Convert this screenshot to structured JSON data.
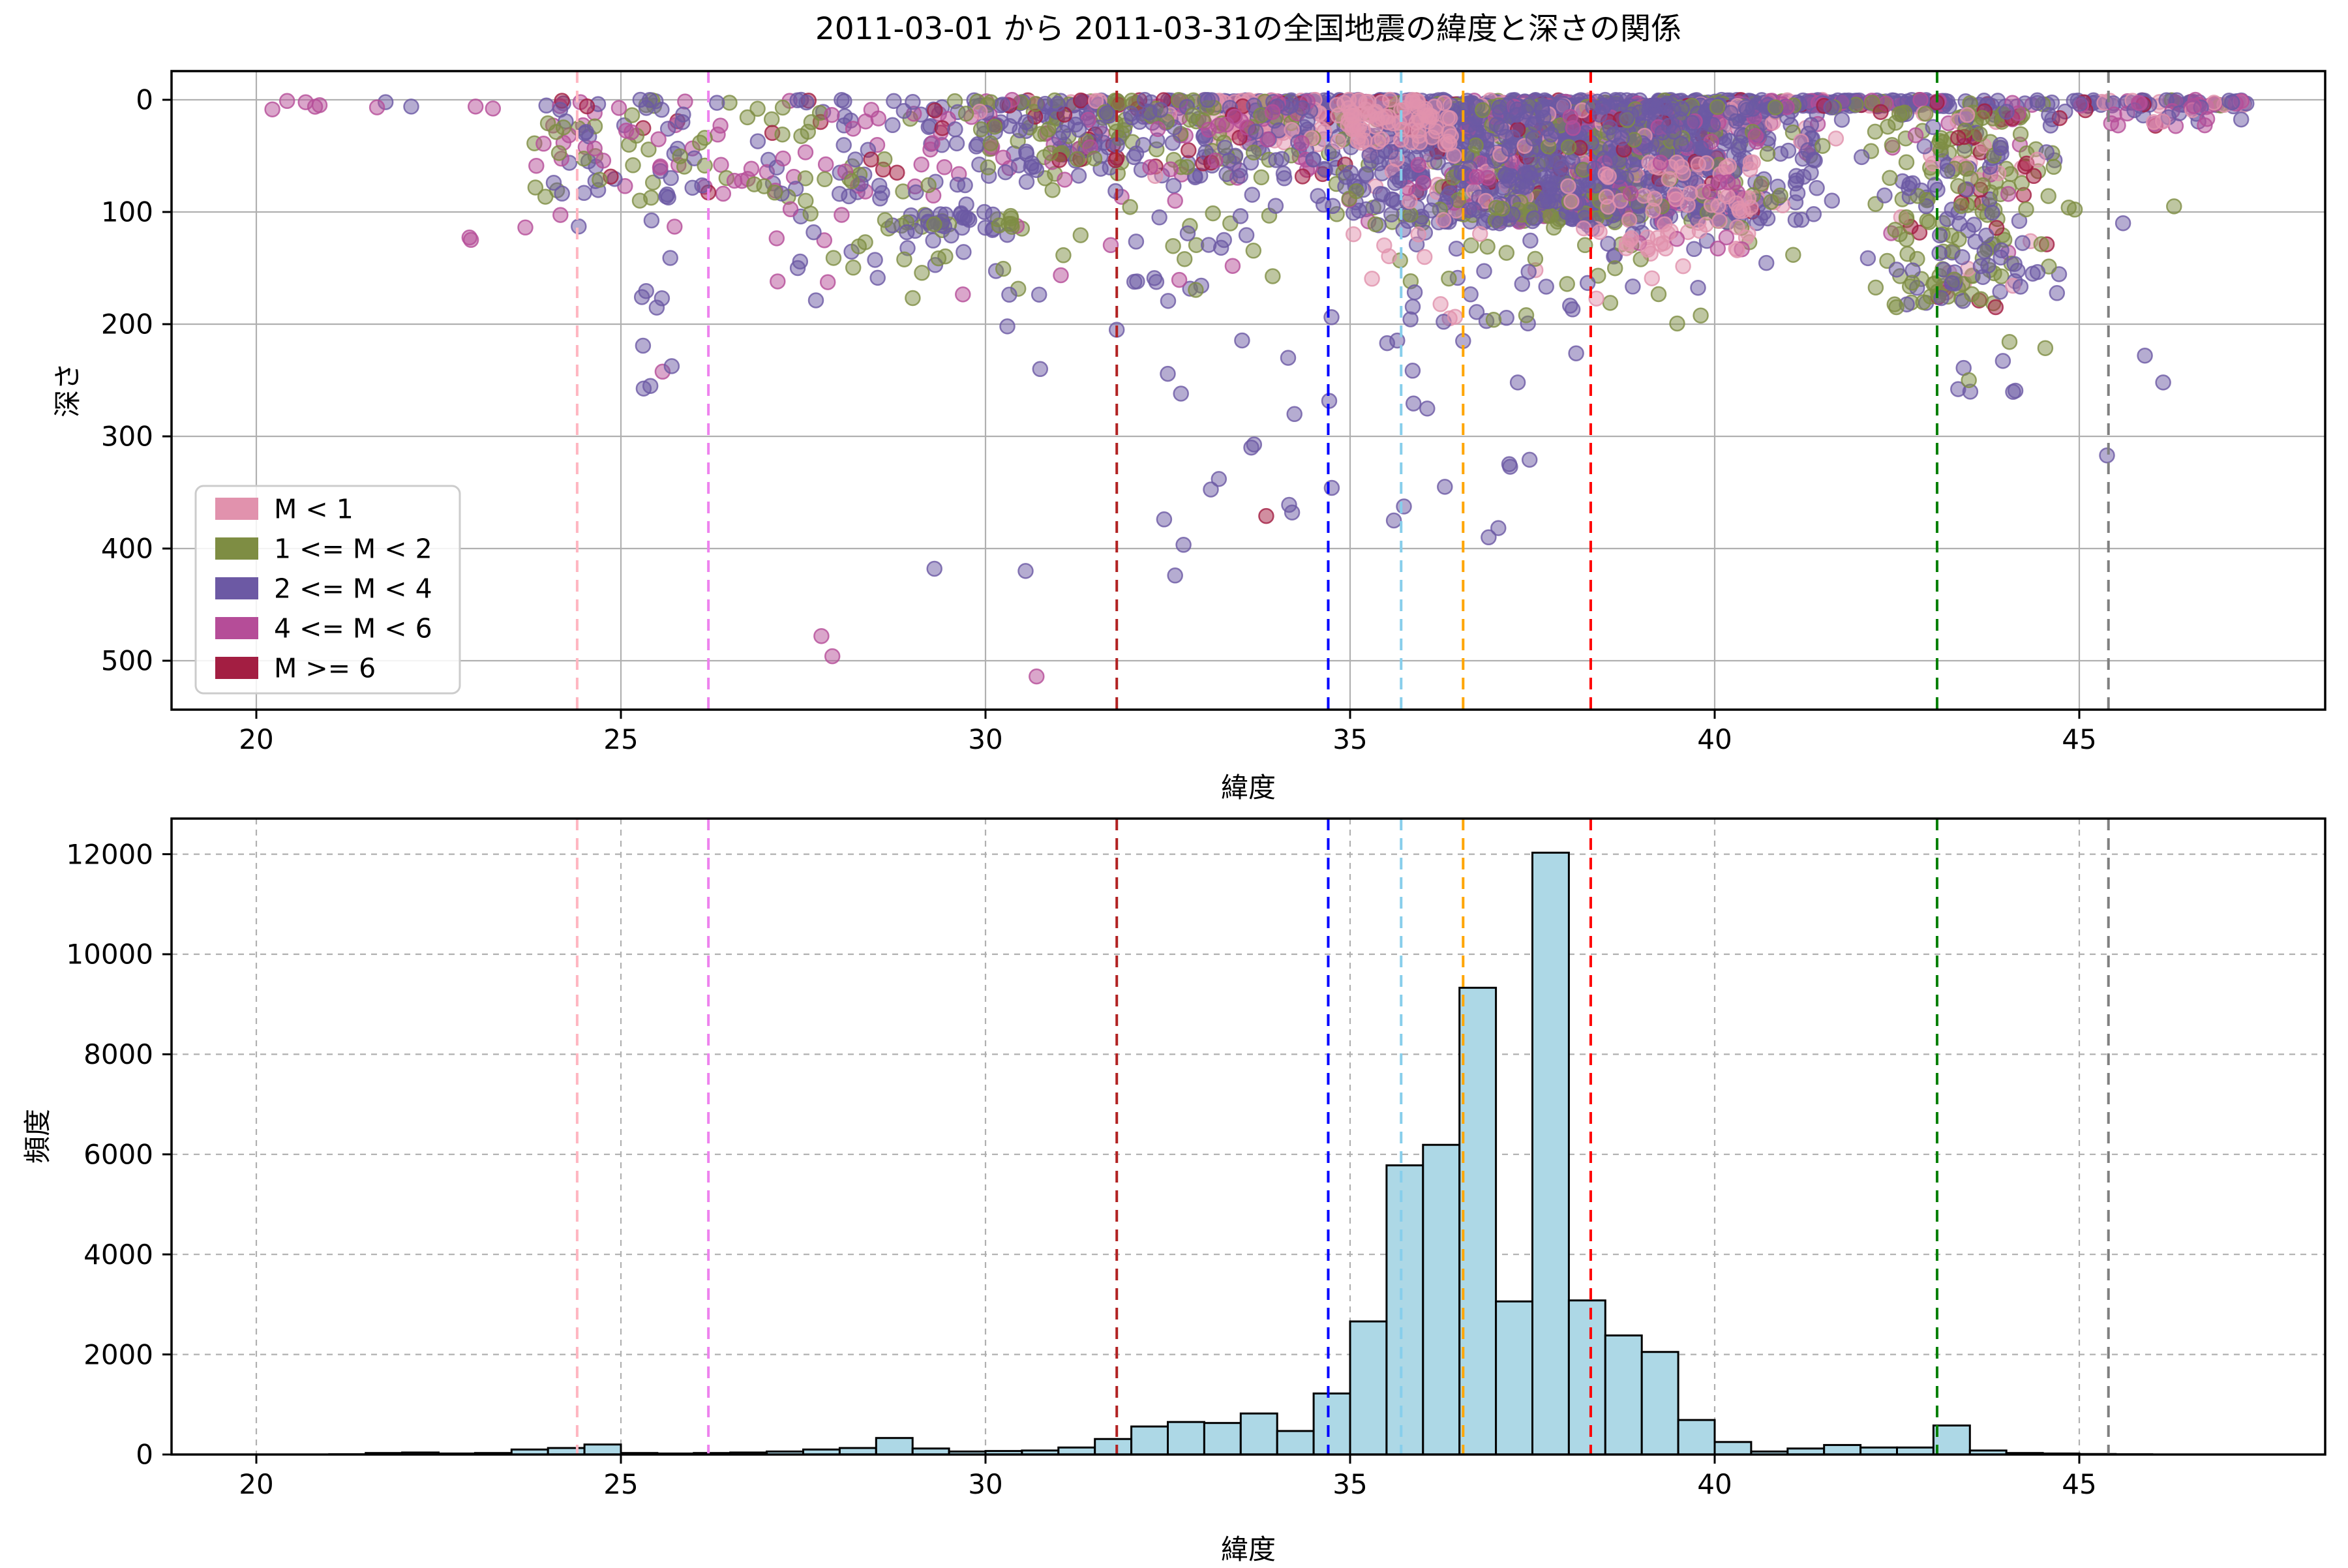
{
  "title": "2011-03-01 から 2011-03-31の全国地震の緯度と深さの関係",
  "colors": {
    "pink": "#e192ad",
    "olive": "#7e8d43",
    "purple": "#6c59a4",
    "magenta": "#b54d98",
    "crimson": "#a31e42",
    "hist_fill": "#add8e6",
    "hist_edge": "#000000",
    "grid": "#b0b0b0",
    "spine": "#000000"
  },
  "legend": {
    "items": [
      {
        "label": "M < 1",
        "color": "pink"
      },
      {
        "label": "1 <= M < 2",
        "color": "olive"
      },
      {
        "label": "2 <= M < 4",
        "color": "purple"
      },
      {
        "label": "4 <= M < 6",
        "color": "magenta"
      },
      {
        "label": "M >= 6",
        "color": "crimson"
      }
    ]
  },
  "scatter_axes": {
    "xlabel": "緯度",
    "ylabel": "深さ",
    "xticks": [
      20,
      25,
      30,
      35,
      40,
      45
    ],
    "yticks": [
      0,
      100,
      200,
      300,
      400,
      500
    ],
    "xlim": [
      18.84,
      48.37
    ],
    "ylim": [
      544,
      -26
    ]
  },
  "hist_axes": {
    "xlabel": "緯度",
    "ylabel": "頻度",
    "xticks": [
      20,
      25,
      30,
      35,
      40,
      45
    ],
    "yticks": [
      0,
      2000,
      4000,
      6000,
      8000,
      10000,
      12000
    ],
    "xlim": [
      18.84,
      48.37
    ],
    "ylim": [
      0,
      12700
    ]
  },
  "chart_data": {
    "type": [
      "scatter",
      "histogram"
    ],
    "title": "2011-03-01 から 2011-03-31の全国地震の緯度と深さの関係",
    "vlines": [
      {
        "lat": 24.4,
        "color": "#ffb6c1"
      },
      {
        "lat": 26.2,
        "color": "#ee82ee"
      },
      {
        "lat": 31.8,
        "color": "#b22222"
      },
      {
        "lat": 34.7,
        "color": "#0000ff"
      },
      {
        "lat": 35.7,
        "color": "#87ceeb"
      },
      {
        "lat": 36.55,
        "color": "#ffa500"
      },
      {
        "lat": 38.3,
        "color": "#ff0000"
      },
      {
        "lat": 43.05,
        "color": "#008000"
      },
      {
        "lat": 45.4,
        "color": "#808080"
      }
    ],
    "histogram": {
      "xlabel": "緯度",
      "ylabel": "頻度",
      "bin_start": 20.0,
      "bin_width": 0.5,
      "values": [
        0,
        0,
        5,
        30,
        40,
        20,
        30,
        100,
        130,
        200,
        30,
        20,
        30,
        40,
        60,
        100,
        130,
        330,
        120,
        60,
        70,
        80,
        140,
        310,
        560,
        650,
        630,
        820,
        470,
        1220,
        2660,
        5780,
        6190,
        9330,
        3060,
        12030,
        3080,
        2380,
        2050,
        690,
        250,
        60,
        120,
        190,
        140,
        140,
        580,
        80,
        30,
        20,
        10,
        5,
        0,
        0
      ]
    },
    "scatter": {
      "xlabel": "緯度",
      "ylabel": "深さ",
      "marker_radius_px": 11,
      "fill_alpha": 0.5,
      "stroke_alpha": 0.8,
      "clusters": [
        {
          "name": "shallow-line-core",
          "lat": [
            33.0,
            43.2
          ],
          "depth": [
            0,
            6
          ],
          "count": 420,
          "pow": 1,
          "shape": "uniform",
          "mix": {
            "purple": 0.7,
            "magenta": 0.1,
            "pink": 0.07,
            "olive": 0.07,
            "crimson": 0.06
          }
        },
        {
          "name": "shallow-line-wide",
          "lat": [
            29.5,
            47.3
          ],
          "depth": [
            0,
            6
          ],
          "count": 260,
          "pow": 1,
          "shape": "uniform",
          "mix": {
            "purple": 0.62,
            "magenta": 0.18,
            "pink": 0.08,
            "olive": 0.06,
            "crimson": 0.06
          }
        },
        {
          "name": "tohoku-blob",
          "lat": [
            34.3,
            41.8
          ],
          "depth": [
            5,
            110
          ],
          "count": 1700,
          "pow": 1.6,
          "shape": "center",
          "mix": {
            "purple": 0.66,
            "olive": 0.15,
            "magenta": 0.08,
            "pink": 0.07,
            "crimson": 0.04
          }
        },
        {
          "name": "blob-deep-fringe",
          "lat": [
            34.5,
            41.5
          ],
          "depth": [
            90,
            200
          ],
          "count": 120,
          "pow": 1.4,
          "shape": "center",
          "mix": {
            "purple": 0.5,
            "olive": 0.3,
            "pink": 0.2
          }
        },
        {
          "name": "kanto-pink",
          "lat": [
            33.0,
            36.4
          ],
          "depth": [
            0,
            40
          ],
          "count": 160,
          "pow": 1.3,
          "shape": "uniform",
          "mix": {
            "pink": 1
          }
        },
        {
          "name": "pink-mid-depth",
          "lat": [
            38.4,
            40.6
          ],
          "depth": [
            55,
            135
          ],
          "count": 70,
          "pow": 1,
          "shape": "uniform",
          "mix": {
            "pink": 0.85,
            "magenta": 0.15
          }
        },
        {
          "name": "west-japan",
          "lat": [
            29.8,
            34.5
          ],
          "depth": [
            0,
            70
          ],
          "count": 330,
          "pow": 1.4,
          "shape": "uniform",
          "mix": {
            "purple": 0.45,
            "olive": 0.3,
            "magenta": 0.15,
            "crimson": 0.06,
            "pink": 0.04
          }
        },
        {
          "name": "southwest",
          "lat": [
            23.8,
            29.8
          ],
          "depth": [
            0,
            90
          ],
          "count": 200,
          "pow": 1.3,
          "shape": "uniform",
          "mix": {
            "purple": 0.42,
            "magenta": 0.25,
            "olive": 0.25,
            "crimson": 0.08
          }
        },
        {
          "name": "okinawa-deep-trail",
          "lat": [
            25.25,
            25.75
          ],
          "depth": [
            80,
            265
          ],
          "count": 14,
          "pow": 1,
          "shape": "uniform",
          "mix": {
            "purple": 0.9,
            "magenta": 0.1
          }
        },
        {
          "name": "izu-deep",
          "lat": [
            32.4,
            34.6
          ],
          "depth": [
            200,
            430
          ],
          "count": 10,
          "pow": 1,
          "shape": "uniform",
          "mix": {
            "purple": 1
          }
        },
        {
          "name": "hokkaido",
          "lat": [
            41.9,
            45.0
          ],
          "depth": [
            10,
            185
          ],
          "count": 290,
          "pow": 1.2,
          "shape": "center",
          "mix": {
            "olive": 0.42,
            "purple": 0.33,
            "pink": 0.1,
            "crimson": 0.09,
            "magenta": 0.06
          }
        },
        {
          "name": "hokkaido-deep",
          "lat": [
            43.0,
            44.7
          ],
          "depth": [
            195,
            265
          ],
          "count": 9,
          "pow": 1,
          "shape": "uniform",
          "mix": {
            "purple": 0.85,
            "olive": 0.15
          }
        },
        {
          "name": "far-north-shallow",
          "lat": [
            45.0,
            47.25
          ],
          "depth": [
            0,
            25
          ],
          "count": 45,
          "pow": 1.5,
          "shape": "uniform",
          "mix": {
            "magenta": 0.4,
            "purple": 0.4,
            "pink": 0.15,
            "crimson": 0.05
          }
        },
        {
          "name": "far-south-shallow",
          "lat": [
            20.1,
            23.8
          ],
          "depth": [
            0,
            10
          ],
          "count": 10,
          "pow": 1,
          "shape": "uniform",
          "mix": {
            "magenta": 0.8,
            "purple": 0.2
          }
        },
        {
          "name": "left-mid-depth",
          "lat": [
            22.8,
            24.5
          ],
          "depth": [
            100,
            140
          ],
          "count": 5,
          "pow": 1,
          "shape": "uniform",
          "mix": {
            "magenta": 0.6,
            "purple": 0.4
          }
        },
        {
          "name": "scattered-mid",
          "lat": [
            27.0,
            34.0
          ],
          "depth": [
            70,
            180
          ],
          "count": 90,
          "pow": 1,
          "shape": "uniform",
          "mix": {
            "olive": 0.45,
            "purple": 0.45,
            "magenta": 0.1
          }
        },
        {
          "name": "kanto-deep-scatter",
          "lat": [
            34.5,
            37.5
          ],
          "depth": [
            200,
            400
          ],
          "count": 12,
          "pow": 1,
          "shape": "uniform",
          "mix": {
            "purple": 1
          }
        },
        {
          "name": "kyushu-line-110",
          "lat": [
            28.6,
            30.4
          ],
          "depth": [
            100,
            122
          ],
          "count": 45,
          "pow": 1,
          "shape": "uniform",
          "mix": {
            "purple": 0.6,
            "olive": 0.4
          }
        }
      ],
      "outliers": [
        [
          27.75,
          478,
          "magenta"
        ],
        [
          27.9,
          496,
          "magenta"
        ],
        [
          29.3,
          418,
          "purple"
        ],
        [
          30.7,
          514,
          "magenta"
        ],
        [
          30.55,
          420,
          "purple"
        ],
        [
          33.85,
          371,
          "crimson"
        ],
        [
          45.38,
          317,
          "purple"
        ],
        [
          30.3,
          202,
          "purple"
        ],
        [
          31.8,
          205,
          "purple"
        ],
        [
          36.9,
          390,
          "purple"
        ],
        [
          36.3,
          345,
          "purple"
        ],
        [
          35.6,
          375,
          "purple"
        ],
        [
          33.2,
          338,
          "purple"
        ],
        [
          32.6,
          424,
          "purple"
        ],
        [
          32.45,
          374,
          "purple"
        ],
        [
          34.15,
          230,
          "purple"
        ],
        [
          36.55,
          215,
          "purple"
        ],
        [
          37.3,
          252,
          "purple"
        ],
        [
          38.1,
          226,
          "purple"
        ],
        [
          45.9,
          228,
          "purple"
        ],
        [
          46.15,
          252,
          "purple"
        ],
        [
          45.6,
          110,
          "purple"
        ],
        [
          46.3,
          95,
          "olive"
        ],
        [
          30.75,
          240,
          "purple"
        ]
      ]
    }
  }
}
